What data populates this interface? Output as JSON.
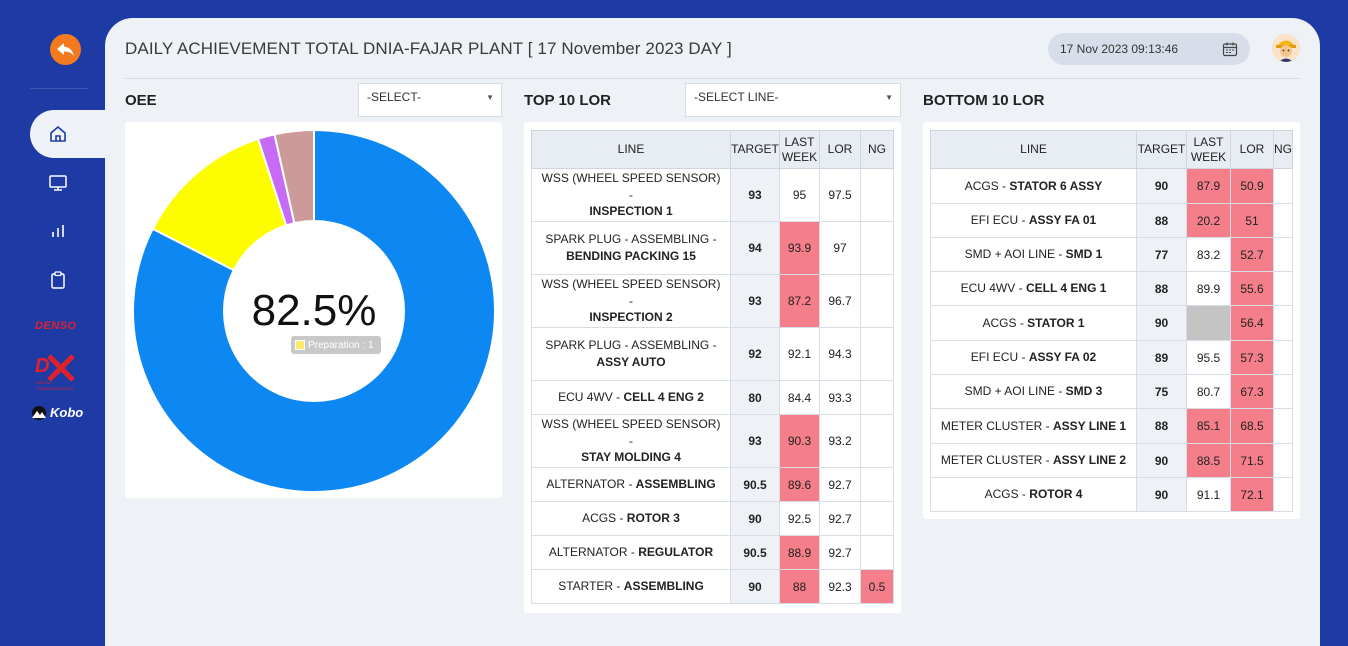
{
  "header": {
    "title": "DAILY ACHIEVEMENT TOTAL DNIA-FAJAR PLANT [ 17 November 2023 DAY ]",
    "datetime": "17 Nov 2023 09:13:46"
  },
  "sidebar": {
    "items": [
      {
        "icon": "home-icon"
      },
      {
        "icon": "monitor-icon"
      },
      {
        "icon": "bar-chart-icon"
      },
      {
        "icon": "clipboard-icon"
      }
    ],
    "logos": {
      "denso": "DENSO",
      "dx_sub": "DIGITAL TRANSFORMATION",
      "kobo": "Kobo"
    }
  },
  "oee": {
    "title": "OEE",
    "select": "-SELECT-",
    "value_label": "82.5%",
    "tooltip": "Preparation : 1",
    "slices": [
      {
        "value": 82.5,
        "color": "#0d87f2"
      },
      {
        "value": 12.5,
        "color": "#fdfd00"
      },
      {
        "value": 1.5,
        "color": "#c76af5"
      },
      {
        "value": 3.5,
        "color": "#cc9a98"
      }
    ]
  },
  "top_lor": {
    "title": "TOP 10 LOR",
    "select": "-SELECT LINE-",
    "headers": {
      "line": "LINE",
      "target": "TARGET",
      "last_week": "LAST WEEK",
      "lor": "LOR",
      "ng": "NG"
    },
    "rows": [
      {
        "prefix": "WSS (WHEEL SPEED SENSOR) -",
        "name": "INSPECTION 1",
        "target": "93",
        "last_week": "95",
        "lw_status": "",
        "lor": "97.5",
        "lor_status": "",
        "ng": "",
        "ng_status": ""
      },
      {
        "prefix": "SPARK PLUG - ASSEMBLING -",
        "name": "BENDING PACKING 15",
        "target": "94",
        "last_week": "93.9",
        "lw_status": "red",
        "lor": "97",
        "lor_status": "",
        "ng": "",
        "ng_status": ""
      },
      {
        "prefix": "WSS (WHEEL SPEED SENSOR) -",
        "name": "INSPECTION 2",
        "target": "93",
        "last_week": "87.2",
        "lw_status": "red",
        "lor": "96.7",
        "lor_status": "",
        "ng": "",
        "ng_status": ""
      },
      {
        "prefix": "SPARK PLUG - ASSEMBLING -",
        "name": "ASSY AUTO",
        "target": "92",
        "last_week": "92.1",
        "lw_status": "",
        "lor": "94.3",
        "lor_status": "",
        "ng": "",
        "ng_status": ""
      },
      {
        "prefix": "ECU 4WV -",
        "name": "CELL 4 ENG 2",
        "target": "80",
        "last_week": "84.4",
        "lw_status": "",
        "lor": "93.3",
        "lor_status": "",
        "ng": "",
        "ng_status": "",
        "inline": true
      },
      {
        "prefix": "WSS (WHEEL SPEED SENSOR) -",
        "name": "STAY MOLDING 4",
        "target": "93",
        "last_week": "90.3",
        "lw_status": "red",
        "lor": "93.2",
        "lor_status": "",
        "ng": "",
        "ng_status": ""
      },
      {
        "prefix": "ALTERNATOR -",
        "name": "ASSEMBLING",
        "target": "90.5",
        "last_week": "89.6",
        "lw_status": "red",
        "lor": "92.7",
        "lor_status": "",
        "ng": "",
        "ng_status": "",
        "inline": true
      },
      {
        "prefix": "ACGS -",
        "name": "ROTOR 3",
        "target": "90",
        "last_week": "92.5",
        "lw_status": "",
        "lor": "92.7",
        "lor_status": "",
        "ng": "",
        "ng_status": "",
        "inline": true
      },
      {
        "prefix": "ALTERNATOR -",
        "name": "REGULATOR",
        "target": "90.5",
        "last_week": "88.9",
        "lw_status": "red",
        "lor": "92.7",
        "lor_status": "",
        "ng": "",
        "ng_status": "",
        "inline": true
      },
      {
        "prefix": "STARTER -",
        "name": "ASSEMBLING",
        "target": "90",
        "last_week": "88",
        "lw_status": "red",
        "lor": "92.3",
        "lor_status": "",
        "ng": "0.5",
        "ng_status": "red",
        "inline": true
      }
    ]
  },
  "bottom_lor": {
    "title": "BOTTOM 10 LOR",
    "headers": {
      "line": "LINE",
      "target": "TARGET",
      "last_week": "LAST WEEK",
      "lor": "LOR",
      "ng": "NG"
    },
    "rows": [
      {
        "prefix": "ACGS -",
        "name": "STATOR 6 ASSY",
        "target": "90",
        "last_week": "87.9",
        "lw_status": "red",
        "lor": "50.9",
        "lor_status": "red",
        "ng": ""
      },
      {
        "prefix": "EFI ECU -",
        "name": "ASSY FA 01",
        "target": "88",
        "last_week": "20.2",
        "lw_status": "red",
        "lor": "51",
        "lor_status": "red",
        "ng": ""
      },
      {
        "prefix": "SMD + AOI LINE -",
        "name": "SMD 1",
        "target": "77",
        "last_week": "83.2",
        "lw_status": "",
        "lor": "52.7",
        "lor_status": "red",
        "ng": ""
      },
      {
        "prefix": "ECU 4WV -",
        "name": "CELL 4 ENG 1",
        "target": "88",
        "last_week": "89.9",
        "lw_status": "",
        "lor": "55.6",
        "lor_status": "red",
        "ng": ""
      },
      {
        "prefix": "ACGS -",
        "name": "STATOR 1",
        "target": "90",
        "last_week": "",
        "lw_status": "gray",
        "lor": "56.4",
        "lor_status": "red",
        "ng": ""
      },
      {
        "prefix": "EFI ECU -",
        "name": "ASSY FA 02",
        "target": "89",
        "last_week": "95.5",
        "lw_status": "",
        "lor": "57.3",
        "lor_status": "red",
        "ng": ""
      },
      {
        "prefix": "SMD + AOI LINE -",
        "name": "SMD 3",
        "target": "75",
        "last_week": "80.7",
        "lw_status": "",
        "lor": "67.3",
        "lor_status": "red",
        "ng": ""
      },
      {
        "prefix": "METER CLUSTER -",
        "name": "ASSY LINE 1",
        "target": "88",
        "last_week": "85.1",
        "lw_status": "red",
        "lor": "68.5",
        "lor_status": "red",
        "ng": ""
      },
      {
        "prefix": "METER CLUSTER -",
        "name": "ASSY LINE 2",
        "target": "90",
        "last_week": "88.5",
        "lw_status": "red",
        "lor": "71.5",
        "lor_status": "red",
        "ng": ""
      },
      {
        "prefix": "ACGS -",
        "name": "ROTOR 4",
        "target": "90",
        "last_week": "91.1",
        "lw_status": "",
        "lor": "72.1",
        "lor_status": "red",
        "ng": ""
      }
    ]
  }
}
